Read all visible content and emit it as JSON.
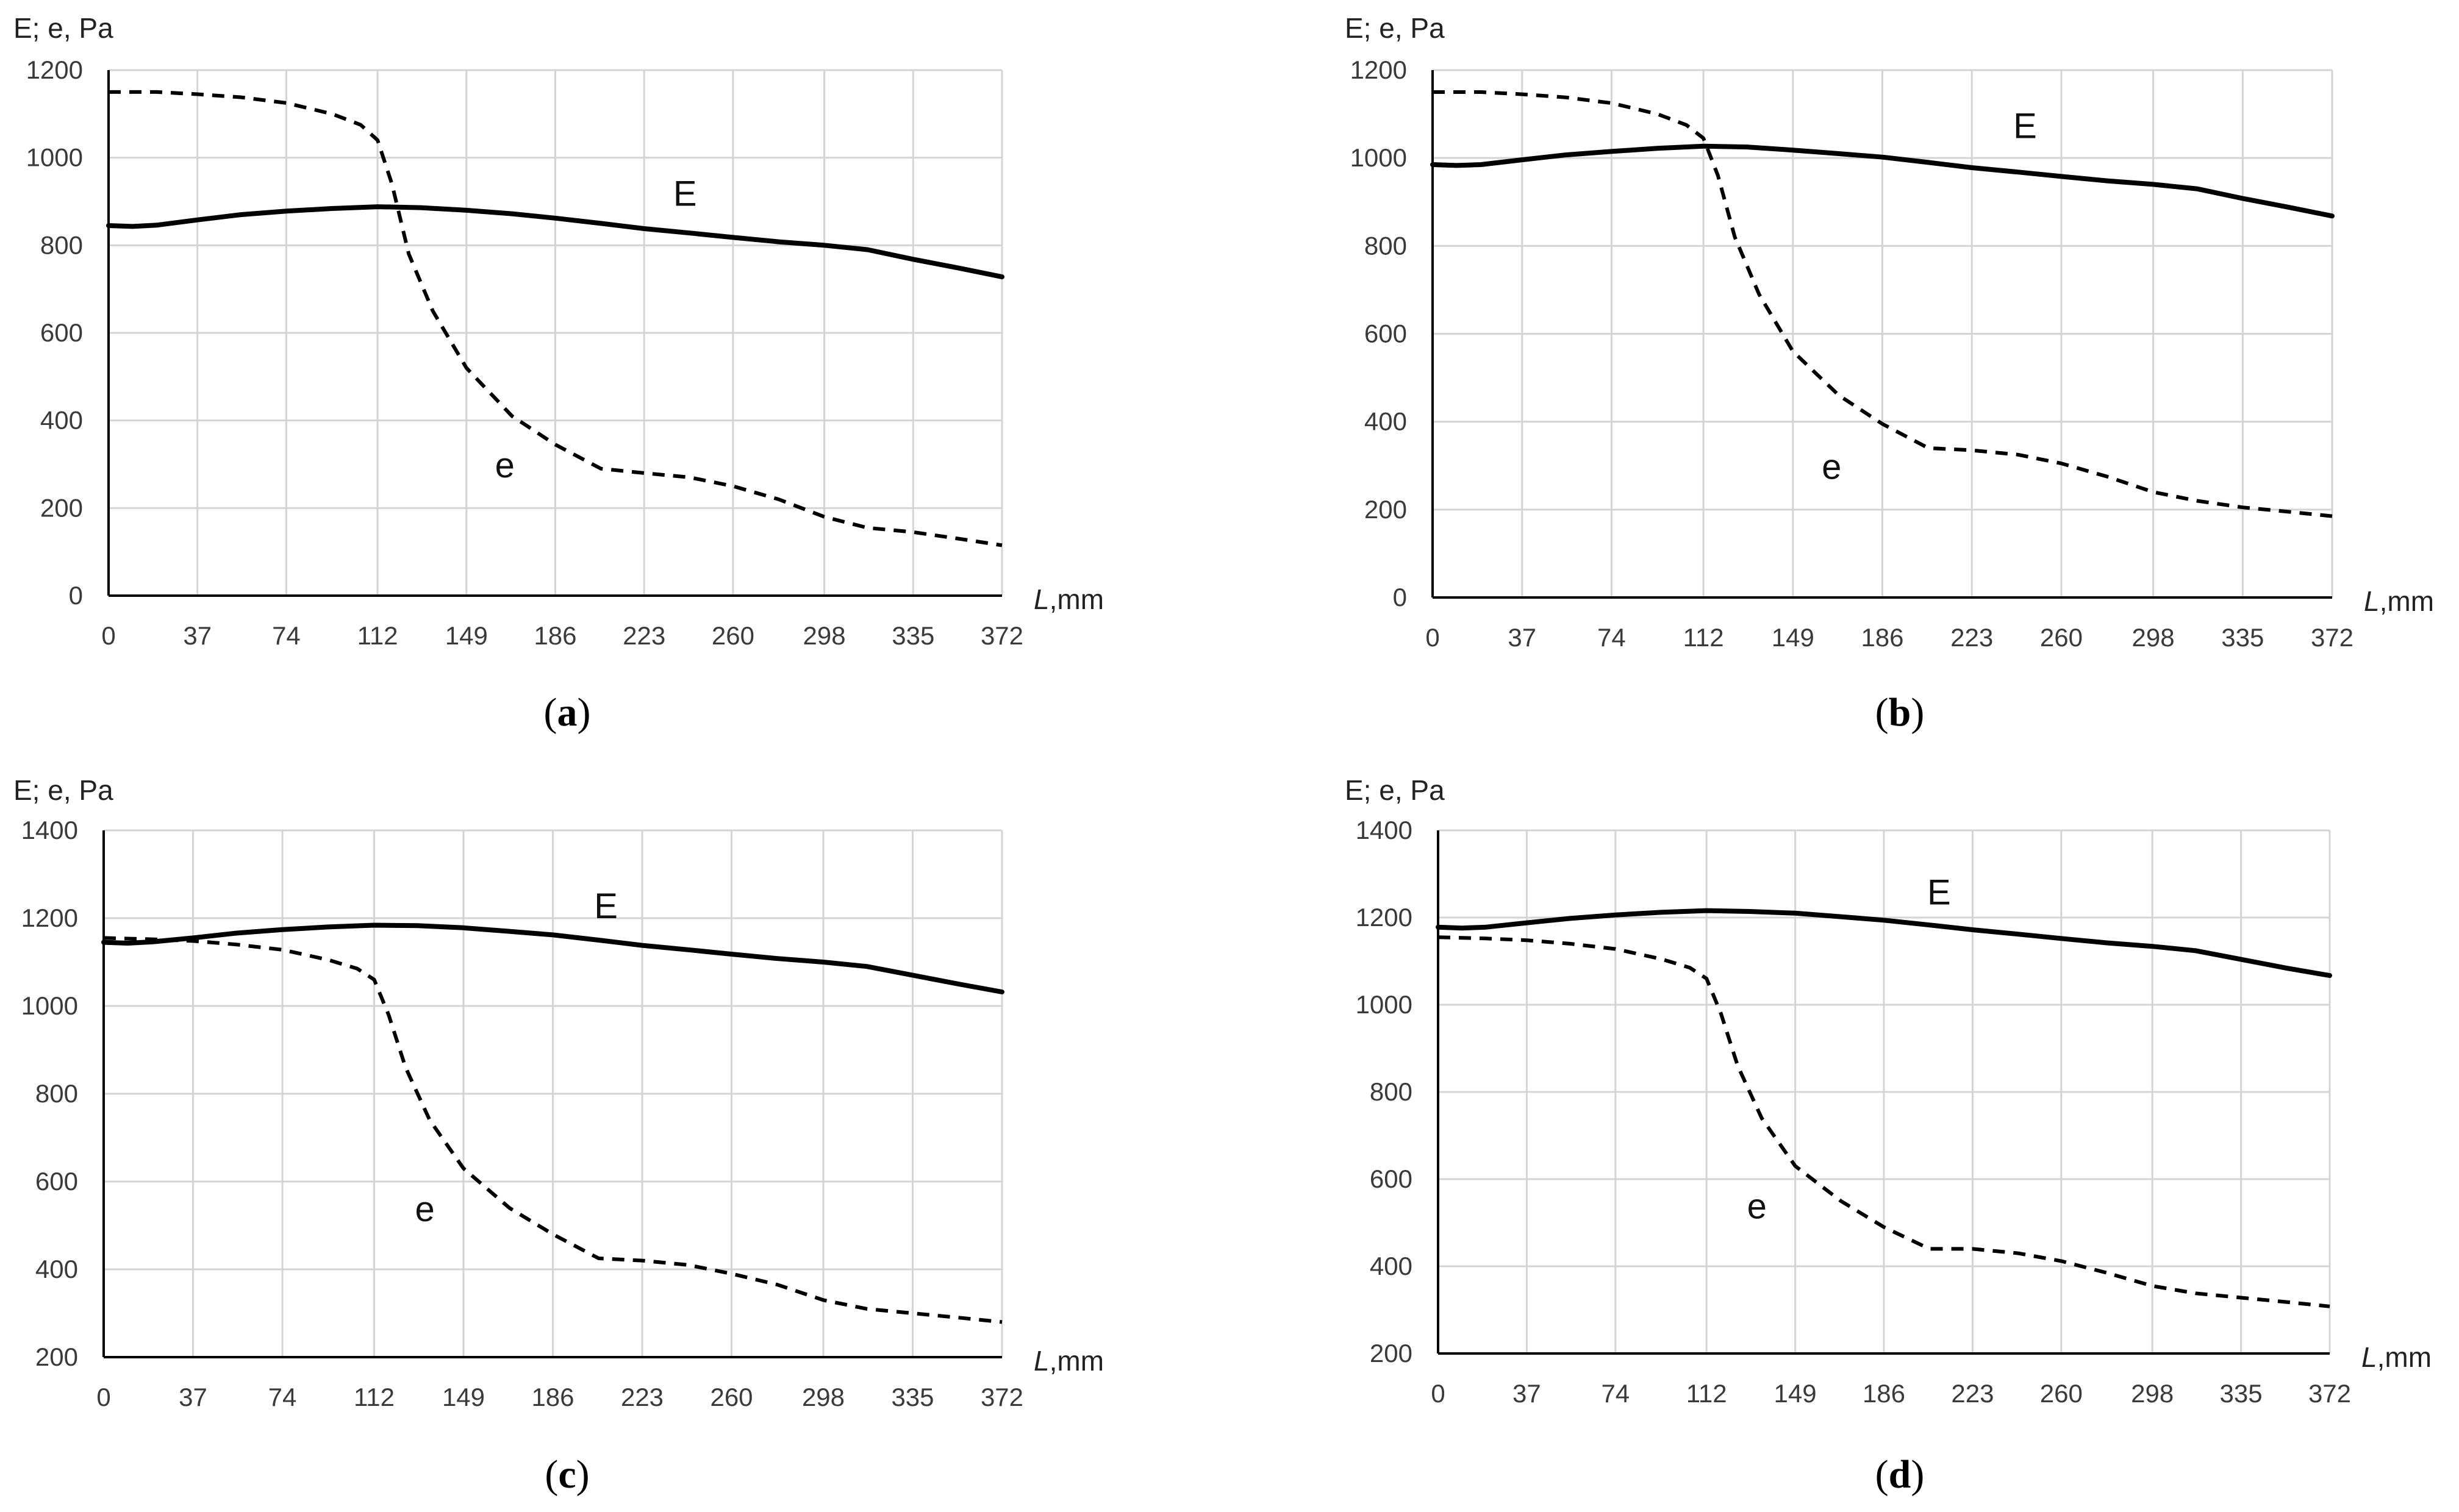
{
  "chart_data": [
    {
      "id": "a",
      "type": "line",
      "caption": {
        "open": "(",
        "letter": "a",
        "close": ")"
      },
      "ylabel": "E; e, Pa",
      "xlabel": {
        "italic": "L",
        "unit": ",mm"
      },
      "ylim": [
        0,
        1200
      ],
      "yticks": [
        "0",
        "200",
        "400",
        "600",
        "800",
        "1000",
        "1200"
      ],
      "categories": [
        "0",
        "37",
        "74",
        "112",
        "149",
        "186",
        "223",
        "260",
        "298",
        "335",
        "372"
      ],
      "grid": true,
      "series": [
        {
          "name": "E",
          "style": "solid",
          "x": [
            0,
            10,
            20,
            37,
            55,
            74,
            93,
            112,
            130,
            149,
            168,
            186,
            205,
            223,
            242,
            260,
            279,
            298,
            316,
            335,
            354,
            372
          ],
          "y": [
            845,
            843,
            846,
            858,
            870,
            878,
            884,
            888,
            886,
            880,
            872,
            862,
            850,
            838,
            828,
            818,
            808,
            800,
            790,
            768,
            748,
            728
          ]
        },
        {
          "name": "e",
          "style": "dashed",
          "x": [
            0,
            20,
            37,
            55,
            74,
            93,
            105,
            112,
            118,
            125,
            135,
            149,
            168,
            186,
            205,
            223,
            242,
            260,
            279,
            298,
            316,
            335,
            354,
            372
          ],
          "y": [
            1150,
            1150,
            1145,
            1138,
            1125,
            1100,
            1075,
            1040,
            940,
            780,
            650,
            520,
            410,
            345,
            290,
            280,
            270,
            250,
            220,
            180,
            155,
            145,
            130,
            115
          ]
        }
      ],
      "annotations": [
        {
          "text": "E",
          "x": 240,
          "y": 890
        },
        {
          "text": "e",
          "x": 165,
          "y": 270
        }
      ]
    },
    {
      "id": "b",
      "type": "line",
      "caption": {
        "open": "(",
        "letter": "b",
        "close": ")"
      },
      "ylabel": "E; e, Pa",
      "xlabel": {
        "italic": "L",
        "unit": ",mm"
      },
      "ylim": [
        0,
        1200
      ],
      "yticks": [
        "0",
        "200",
        "400",
        "600",
        "800",
        "1000",
        "1200"
      ],
      "categories": [
        "0",
        "37",
        "74",
        "112",
        "149",
        "186",
        "223",
        "260",
        "298",
        "335",
        "372"
      ],
      "grid": true,
      "series": [
        {
          "name": "E",
          "style": "solid",
          "x": [
            0,
            10,
            20,
            37,
            55,
            74,
            93,
            112,
            130,
            149,
            168,
            186,
            205,
            223,
            242,
            260,
            279,
            298,
            316,
            335,
            354,
            372
          ],
          "y": [
            985,
            983,
            985,
            996,
            1007,
            1015,
            1022,
            1027,
            1025,
            1018,
            1010,
            1002,
            990,
            978,
            968,
            958,
            948,
            940,
            930,
            908,
            888,
            868
          ]
        },
        {
          "name": "e",
          "style": "dashed",
          "x": [
            0,
            20,
            37,
            55,
            74,
            93,
            105,
            112,
            118,
            125,
            135,
            149,
            168,
            186,
            205,
            223,
            242,
            260,
            279,
            298,
            316,
            335,
            354,
            372
          ],
          "y": [
            1150,
            1150,
            1145,
            1138,
            1125,
            1100,
            1075,
            1045,
            960,
            820,
            690,
            560,
            460,
            395,
            340,
            335,
            325,
            305,
            275,
            240,
            220,
            205,
            195,
            185
          ]
        }
      ],
      "annotations": [
        {
          "text": "E",
          "x": 245,
          "y": 1045
        },
        {
          "text": "e",
          "x": 165,
          "y": 270
        }
      ]
    },
    {
      "id": "c",
      "type": "line",
      "caption": {
        "open": "(",
        "letter": "c",
        "close": ")"
      },
      "ylabel": "E; e, Pa",
      "xlabel": {
        "italic": "L",
        "unit": ",mm"
      },
      "ylim": [
        200,
        1400
      ],
      "yticks": [
        "200",
        "400",
        "600",
        "800",
        "1000",
        "1200",
        "1400"
      ],
      "categories": [
        "0",
        "37",
        "74",
        "112",
        "149",
        "186",
        "223",
        "260",
        "298",
        "335",
        "372"
      ],
      "grid": true,
      "series": [
        {
          "name": "E",
          "style": "solid",
          "x": [
            0,
            10,
            20,
            37,
            55,
            74,
            93,
            112,
            130,
            149,
            168,
            186,
            205,
            223,
            242,
            260,
            279,
            298,
            316,
            335,
            354,
            372
          ],
          "y": [
            1145,
            1143,
            1146,
            1155,
            1166,
            1174,
            1180,
            1184,
            1183,
            1178,
            1170,
            1162,
            1150,
            1138,
            1128,
            1118,
            1108,
            1100,
            1090,
            1070,
            1050,
            1032
          ]
        },
        {
          "name": "e",
          "style": "dashed",
          "x": [
            0,
            20,
            37,
            55,
            74,
            93,
            105,
            112,
            118,
            125,
            135,
            149,
            168,
            186,
            205,
            223,
            242,
            260,
            279,
            298,
            316,
            335,
            354,
            372
          ],
          "y": [
            1155,
            1152,
            1148,
            1140,
            1128,
            1105,
            1085,
            1060,
            980,
            860,
            740,
            630,
            540,
            480,
            425,
            420,
            410,
            390,
            365,
            330,
            310,
            300,
            290,
            280
          ]
        }
      ],
      "annotations": [
        {
          "text": "E",
          "x": 208,
          "y": 1200
        },
        {
          "text": "e",
          "x": 133,
          "y": 510
        }
      ]
    },
    {
      "id": "d",
      "type": "line",
      "caption": {
        "open": "(",
        "letter": "d",
        "close": ")"
      },
      "ylabel": "E; e, Pa",
      "xlabel": {
        "italic": "L",
        "unit": ",mm"
      },
      "ylim": [
        200,
        1400
      ],
      "yticks": [
        "200",
        "400",
        "600",
        "800",
        "1000",
        "1200",
        "1400"
      ],
      "categories": [
        "0",
        "37",
        "74",
        "112",
        "149",
        "186",
        "223",
        "260",
        "298",
        "335",
        "372"
      ],
      "grid": true,
      "series": [
        {
          "name": "E",
          "style": "solid",
          "x": [
            0,
            10,
            20,
            37,
            55,
            74,
            93,
            112,
            130,
            149,
            168,
            186,
            205,
            223,
            242,
            260,
            279,
            298,
            316,
            335,
            354,
            372
          ],
          "y": [
            1178,
            1176,
            1178,
            1188,
            1198,
            1206,
            1212,
            1216,
            1214,
            1210,
            1202,
            1194,
            1183,
            1172,
            1162,
            1152,
            1142,
            1134,
            1124,
            1104,
            1084,
            1067
          ]
        },
        {
          "name": "e",
          "style": "dashed",
          "x": [
            0,
            20,
            37,
            55,
            74,
            93,
            105,
            112,
            118,
            125,
            135,
            149,
            168,
            186,
            205,
            223,
            242,
            260,
            279,
            298,
            316,
            335,
            354,
            372
          ],
          "y": [
            1155,
            1152,
            1148,
            1140,
            1128,
            1105,
            1085,
            1060,
            980,
            860,
            740,
            630,
            550,
            490,
            440,
            440,
            430,
            412,
            385,
            355,
            338,
            328,
            318,
            308
          ]
        }
      ],
      "annotations": [
        {
          "text": "E",
          "x": 209,
          "y": 1230
        },
        {
          "text": "e",
          "x": 133,
          "y": 510
        }
      ]
    }
  ]
}
